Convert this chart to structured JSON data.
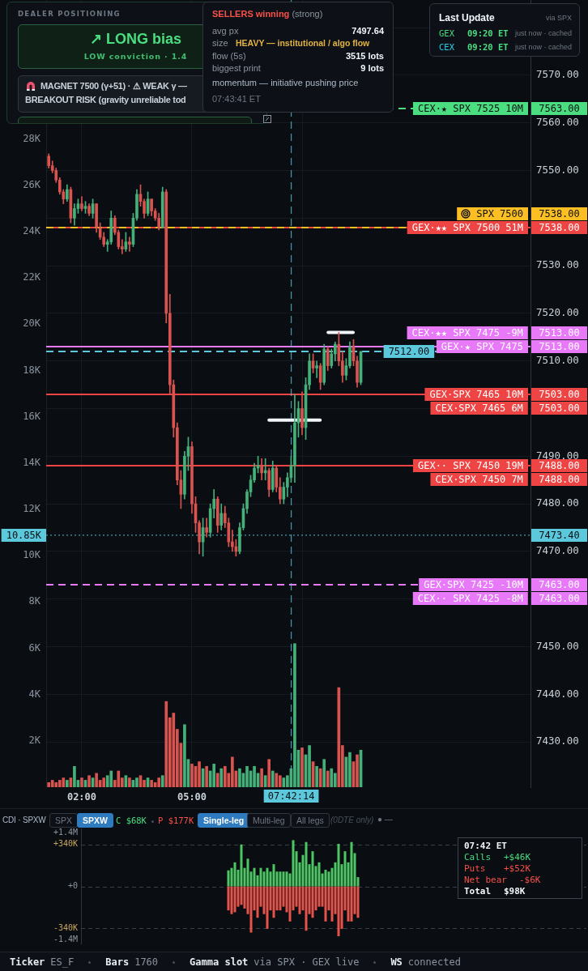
{
  "chart_data": [
    {
      "type": "candlestick",
      "x": [
        1.1,
        1.2,
        1.3,
        1.4,
        1.5,
        1.6,
        1.7,
        1.8,
        1.9,
        2,
        2.1,
        2.2,
        2.3,
        2.4,
        2.5,
        2.6,
        2.7,
        2.8,
        2.9,
        3,
        3.1,
        3.2,
        3.3,
        3.4,
        3.5,
        3.6,
        3.7,
        3.8,
        3.9,
        4,
        4.1,
        4.2,
        4.3,
        4.4,
        4.5,
        4.6,
        4.7,
        4.8,
        4.9,
        5,
        5.1,
        5.2,
        5.3,
        5.4,
        5.5,
        5.6,
        5.7,
        5.8,
        5.9,
        6,
        6.1,
        6.2,
        6.3,
        6.4,
        6.5,
        6.6,
        6.7,
        6.8,
        6.9,
        7,
        7.1,
        7.2,
        7.3,
        7.4,
        7.5,
        7.6,
        7.7,
        7.8,
        7.9,
        8,
        8.1,
        8.2,
        8.3,
        8.4,
        8.5,
        8.6,
        8.7,
        8.8,
        8.9,
        9,
        9.1,
        9.2,
        9.3,
        9.4,
        9.5,
        9.6
      ],
      "series": [
        {
          "ohlc": [
            [
              7553,
              7553.5,
              7550.5,
              7551
            ],
            [
              7551,
              7552,
              7549.5,
              7550
            ],
            [
              7550,
              7550.5,
              7547.5,
              7548
            ],
            [
              7548,
              7548.5,
              7545,
              7545.5
            ],
            [
              7545.5,
              7546,
              7543,
              7544
            ],
            [
              7544,
              7547,
              7543.5,
              7546
            ],
            [
              7546,
              7546.5,
              7539,
              7540
            ],
            [
              7540,
              7543,
              7538.5,
              7542
            ],
            [
              7542,
              7544,
              7541,
              7543
            ],
            [
              7543,
              7544.5,
              7541.5,
              7542
            ],
            [
              7542,
              7543.5,
              7541,
              7542.5
            ],
            [
              7542.5,
              7543,
              7540.5,
              7541
            ],
            [
              7541,
              7544,
              7540,
              7543
            ],
            [
              7543,
              7543,
              7537,
              7538
            ],
            [
              7538,
              7539,
              7535.5,
              7536
            ],
            [
              7536,
              7537,
              7534,
              7534.5
            ],
            [
              7534.5,
              7535.5,
              7533,
              7535
            ],
            [
              7535,
              7541.5,
              7534.5,
              7540
            ],
            [
              7540,
              7540.5,
              7536.5,
              7537
            ],
            [
              7537,
              7537.5,
              7533.5,
              7534
            ],
            [
              7534,
              7535.5,
              7532.5,
              7533.5
            ],
            [
              7533.5,
              7537,
              7533,
              7535
            ],
            [
              7535,
              7536,
              7533,
              7534.5
            ],
            [
              7534.5,
              7541,
              7534,
              7540
            ],
            [
              7540,
              7546,
              7539.5,
              7545
            ],
            [
              7545,
              7547,
              7542.5,
              7543.5
            ],
            [
              7543.5,
              7544,
              7540,
              7541
            ],
            [
              7541,
              7545.5,
              7540.5,
              7544
            ],
            [
              7544,
              7544,
              7540.5,
              7541.5
            ],
            [
              7541.5,
              7542,
              7539.5,
              7540
            ],
            [
              7540,
              7541,
              7537.5,
              7538
            ],
            [
              7538,
              7546.5,
              7538,
              7545.5
            ],
            [
              7545.5,
              7546,
              7518,
              7520
            ],
            [
              7520,
              7524,
              7503,
              7505
            ],
            [
              7505,
              7506,
              7494,
              7496
            ],
            [
              7496,
              7497,
              7484,
              7485
            ],
            [
              7485,
              7487,
              7479,
              7482
            ],
            [
              7482,
              7491,
              7481,
              7490
            ],
            [
              7490,
              7494,
              7487,
              7492
            ],
            [
              7492,
              7493,
              7478,
              7480
            ],
            [
              7480,
              7481.5,
              7474,
              7476
            ],
            [
              7476,
              7476.5,
              7469.5,
              7472
            ],
            [
              7472,
              7477,
              7469,
              7475
            ],
            [
              7475,
              7477,
              7473,
              7474
            ],
            [
              7474,
              7480,
              7473,
              7479
            ],
            [
              7479,
              7483,
              7477,
              7481
            ],
            [
              7481,
              7481.5,
              7474,
              7475.5
            ],
            [
              7475.5,
              7480,
              7474.5,
              7478
            ],
            [
              7478,
              7479.5,
              7475,
              7476
            ],
            [
              7476,
              7477,
              7471,
              7472
            ],
            [
              7472,
              7474.5,
              7470,
              7471
            ],
            [
              7471,
              7472.5,
              7469,
              7470
            ],
            [
              7470,
              7476,
              7469.5,
              7475
            ],
            [
              7475,
              7480,
              7474.5,
              7479
            ],
            [
              7479,
              7483,
              7478,
              7482.5
            ],
            [
              7482.5,
              7486,
              7481.5,
              7485
            ],
            [
              7485,
              7488.5,
              7484.5,
              7487.5
            ],
            [
              7487.5,
              7490,
              7486.5,
              7488
            ],
            [
              7488,
              7489.5,
              7485,
              7486.5
            ],
            [
              7486.5,
              7489.5,
              7485,
              7487
            ],
            [
              7487,
              7487.5,
              7481.5,
              7483
            ],
            [
              7483,
              7489,
              7482.5,
              7487.5
            ],
            [
              7487.5,
              7488,
              7482.5,
              7483.5
            ],
            [
              7483.5,
              7485.5,
              7480,
              7481
            ],
            [
              7481,
              7484.5,
              7480,
              7483.5
            ],
            [
              7483.5,
              7486.5,
              7481.5,
              7485.5
            ],
            [
              7485.5,
              7490,
              7484.5,
              7488
            ],
            [
              7488,
              7503,
              7484.5,
              7497
            ],
            [
              7497,
              7501.5,
              7494,
              7500
            ],
            [
              7500,
              7503.5,
              7494.5,
              7496
            ],
            [
              7496,
              7506.5,
              7493.5,
              7505
            ],
            [
              7505,
              7511.5,
              7504,
              7510
            ],
            [
              7510,
              7511.5,
              7507.5,
              7508.5
            ],
            [
              7508.5,
              7510,
              7506.5,
              7509
            ],
            [
              7509,
              7509.5,
              7504,
              7505.5
            ],
            [
              7505.5,
              7513.5,
              7505,
              7512.5
            ],
            [
              7512.5,
              7513,
              7508,
              7509
            ],
            [
              7509,
              7512.5,
              7508.5,
              7511.5
            ],
            [
              7511.5,
              7514,
              7510,
              7513.5
            ],
            [
              7513.5,
              7516,
              7509,
              7510
            ],
            [
              7510,
              7512,
              7505.5,
              7507
            ],
            [
              7507,
              7510.5,
              7506,
              7509
            ],
            [
              7509,
              7514,
              7508.5,
              7513
            ],
            [
              7513,
              7514.5,
              7509,
              7510
            ],
            [
              7510,
              7511,
              7504.5,
              7505.5
            ],
            [
              7505.5,
              7512,
              7505,
              7512
            ]
          ],
          "colors": [
            "#d9534f",
            "#d9534f",
            "#d9534f",
            "#d9534f",
            "#d9534f",
            "#45b07a",
            "#d9534f",
            "#45b07a",
            "#45b07a",
            "#d9534f",
            "#45b07a",
            "#d9534f",
            "#45b07a",
            "#d9534f",
            "#d9534f",
            "#d9534f",
            "#45b07a",
            "#45b07a",
            "#d9534f",
            "#d9534f",
            "#d9534f",
            "#45b07a",
            "#d9534f",
            "#45b07a",
            "#45b07a",
            "#d9534f",
            "#d9534f",
            "#45b07a",
            "#d9534f",
            "#d9534f",
            "#d9534f",
            "#45b07a",
            "#d9534f",
            "#d9534f",
            "#d9534f",
            "#d9534f",
            "#d9534f",
            "#45b07a",
            "#45b07a",
            "#d9534f",
            "#d9534f",
            "#d9534f",
            "#45b07a",
            "#d9534f",
            "#45b07a",
            "#45b07a",
            "#d9534f",
            "#45b07a",
            "#d9534f",
            "#d9534f",
            "#d9534f",
            "#d9534f",
            "#45b07a",
            "#45b07a",
            "#45b07a",
            "#45b07a",
            "#45b07a",
            "#45b07a",
            "#d9534f",
            "#45b07a",
            "#d9534f",
            "#45b07a",
            "#d9534f",
            "#d9534f",
            "#45b07a",
            "#45b07a",
            "#45b07a",
            "#45b07a",
            "#45b07a",
            "#d9534f",
            "#45b07a",
            "#45b07a",
            "#d9534f",
            "#45b07a",
            "#d9534f",
            "#45b07a",
            "#d9534f",
            "#45b07a",
            "#45b07a",
            "#d9534f",
            "#d9534f",
            "#45b07a",
            "#45b07a",
            "#d9534f",
            "#d9534f",
            "#45b07a"
          ]
        },
        {
          "type": "bar",
          "axis": "y2",
          "values": [
            200,
            300,
            200,
            300,
            400,
            300,
            400,
            900,
            300,
            400,
            300,
            500,
            400,
            600,
            300,
            400,
            500,
            700,
            300,
            700,
            400,
            500,
            400,
            300,
            400,
            500,
            300,
            400,
            300,
            200,
            400,
            500,
            3700,
            3000,
            3200,
            2500,
            1900,
            2700,
            1200,
            1000,
            900,
            1100,
            800,
            900,
            700,
            1000,
            600,
            800,
            900,
            600,
            1300,
            700,
            800,
            600,
            900,
            700,
            900,
            600,
            800,
            500,
            1200,
            700,
            600,
            500,
            400,
            500,
            800,
            6200,
            1600,
            1700,
            1400,
            1800,
            1100,
            900,
            800,
            1200,
            700,
            800,
            600,
            4300,
            1800,
            1300,
            1500,
            1100,
            1400,
            1600
          ],
          "colors": [
            "#d9534f",
            "#d9534f",
            "#d9534f",
            "#d9534f",
            "#d9534f",
            "#45b07a",
            "#d9534f",
            "#45b07a",
            "#45b07a",
            "#d9534f",
            "#45b07a",
            "#d9534f",
            "#45b07a",
            "#d9534f",
            "#d9534f",
            "#d9534f",
            "#45b07a",
            "#45b07a",
            "#d9534f",
            "#d9534f",
            "#d9534f",
            "#45b07a",
            "#d9534f",
            "#45b07a",
            "#45b07a",
            "#d9534f",
            "#d9534f",
            "#45b07a",
            "#d9534f",
            "#d9534f",
            "#d9534f",
            "#45b07a",
            "#d9534f",
            "#d9534f",
            "#d9534f",
            "#d9534f",
            "#d9534f",
            "#45b07a",
            "#45b07a",
            "#d9534f",
            "#d9534f",
            "#d9534f",
            "#45b07a",
            "#d9534f",
            "#45b07a",
            "#45b07a",
            "#d9534f",
            "#45b07a",
            "#d9534f",
            "#d9534f",
            "#d9534f",
            "#d9534f",
            "#45b07a",
            "#45b07a",
            "#45b07a",
            "#45b07a",
            "#45b07a",
            "#45b07a",
            "#d9534f",
            "#45b07a",
            "#d9534f",
            "#45b07a",
            "#d9534f",
            "#d9534f",
            "#45b07a",
            "#45b07a",
            "#45b07a",
            "#45b07a",
            "#45b07a",
            "#d9534f",
            "#45b07a",
            "#45b07a",
            "#d9534f",
            "#45b07a",
            "#d9534f",
            "#45b07a",
            "#d9534f",
            "#45b07a",
            "#45b07a",
            "#d9534f",
            "#d9534f",
            "#45b07a",
            "#45b07a",
            "#d9534f",
            "#d9534f",
            "#45b07a"
          ]
        },
        {
          "type": "line",
          "x": [
            7.1,
            8.49
          ],
          "values": [
            7497.6,
            7497.6
          ],
          "color": "#f0f6fc"
        },
        {
          "type": "line",
          "x": [
            8.71,
            9.39
          ],
          "values": [
            7516,
            7516
          ],
          "color": "#f0f6fc"
        }
      ],
      "xlim": [
        1.03,
        14.22
      ],
      "xticks": [
        {
          "value": 2,
          "label": "02:00"
        },
        {
          "value": 5,
          "label": "05:00"
        },
        {
          "value": 8,
          "label": null
        }
      ],
      "ylim": [
        7420.5,
        7585.8
      ],
      "yticks": [
        {
          "value": 7430,
          "label": "7430.00"
        },
        {
          "value": 7440,
          "label": "7440.00"
        },
        {
          "value": 7450,
          "label": "7450.00"
        },
        {
          "value": 7460,
          "label": null
        },
        {
          "value": 7470,
          "label": "7470.00"
        },
        {
          "value": 7480,
          "label": "7480.00"
        },
        {
          "value": 7490,
          "label": "7490.00"
        },
        {
          "value": 7500,
          "label": null
        },
        {
          "value": 7510,
          "label": "7510.00"
        },
        {
          "value": 7520,
          "label": "7520.00"
        },
        {
          "value": 7530,
          "label": "7530.00"
        },
        {
          "value": 7540,
          "label": null
        },
        {
          "value": 7550,
          "label": "7550.00"
        },
        {
          "value": 7560,
          "label": "7560.00"
        },
        {
          "value": 7570,
          "label": "7570.00"
        },
        {
          "value": 7580,
          "label": null
        }
      ],
      "y2lim": [
        0,
        34000
      ],
      "y2ticks": [
        {
          "value": 2000,
          "label": "2K"
        },
        {
          "value": 4000,
          "label": "4K"
        },
        {
          "value": 6000,
          "label": "6K"
        },
        {
          "value": 8000,
          "label": "8K"
        },
        {
          "value": 10000,
          "label": "10K"
        },
        {
          "value": 12000,
          "label": "12K"
        },
        {
          "value": 14000,
          "label": "14K"
        },
        {
          "value": 16000,
          "label": "16K"
        },
        {
          "value": 18000,
          "label": "18K"
        },
        {
          "value": 20000,
          "label": "20K"
        },
        {
          "value": 22000,
          "label": "22K"
        },
        {
          "value": 24000,
          "label": "24K"
        },
        {
          "value": 26000,
          "label": "26K"
        },
        {
          "value": 28000,
          "label": "28K"
        }
      ],
      "grid": true,
      "ref_lines": [
        {
          "axis": "y",
          "value": 7563,
          "label": "CEX·★ SPX 7525 10M",
          "color": "#4ade80",
          "line_style": "dashed"
        },
        {
          "axis": "y",
          "value": 7538,
          "label": "GEX·★★ SPX 7500 51M",
          "color": "#ef4444",
          "line_style": "solid"
        },
        {
          "axis": "y",
          "value": 7538,
          "label": "SPX 7500",
          "color": "#fbbf24",
          "line_style": "dashed"
        },
        {
          "axis": "y",
          "value": 7513,
          "label": "GEX·★ SPX 7475",
          "color": "#e879f9",
          "line_style": "solid"
        },
        {
          "axis": "y",
          "value": 7512,
          "color": "#5bc8dc",
          "line_style": "dashed"
        },
        {
          "axis": "y",
          "value": 7503,
          "label": "GEX·SPX 7465 10M",
          "color": "#ef4444",
          "line_style": "solid"
        },
        {
          "axis": "y",
          "value": 7488,
          "label": "GEX·· SPX 7450 19M",
          "color": "#ef4444",
          "line_style": "solid"
        },
        {
          "axis": "y",
          "value": 7473.4,
          "color": "#5bc8dc",
          "line_style": "dotted"
        },
        {
          "axis": "y",
          "value": 7463,
          "label": "GEX·SPX 7425 -10M",
          "color": "#e879f9",
          "line_style": "dashed"
        },
        {
          "axis": "x",
          "value": 7.7039,
          "color": "#5bc8dc",
          "line_style": "dashed"
        }
      ],
      "annotations": [
        "DEALER POSITIONING",
        "↗ LONG bias",
        "LOW conviction · 1.4",
        "MAGNET 7500 (γ+51) · ⚠ WEAK γ —",
        "BREAKOUT RISK (gravity unreliable tod",
        "SELLERS winning",
        "(strong)",
        "avg px",
        "7497.64",
        "size",
        "HEAVY — institutional / algo flow",
        "flow (5s)",
        "3515 lots",
        "biggest print",
        "9 lots",
        "momentum — initiative pushing price",
        "07:43:41 ET",
        "Last Update",
        "via SPX",
        "GEX",
        "09:20 ET",
        "just now · cached",
        "CEX",
        "09:20 ET",
        "just now · cached",
        {
          "text": "7563.00",
          "x": 14.22,
          "y": 7563
        },
        {
          "text": "7538.00",
          "x": 14.22,
          "y": 7538
        },
        {
          "text": "7538.00",
          "x": 14.22,
          "y": 7538
        },
        {
          "text": "CEX·★★ SPX 7475 -9M",
          "x": 14.15,
          "y": 7513
        },
        {
          "text": "7513.00",
          "x": 14.22,
          "y": 7513
        },
        {
          "text": "7513.00",
          "x": 14.22,
          "y": 7513
        },
        {
          "text": "7512.00",
          "x": 11.6,
          "y": 7512
        },
        {
          "text": "CEX·SPX 7465 6M",
          "x": 14.15,
          "y": 7503
        },
        {
          "text": "7503.00",
          "x": 14.22,
          "y": 7503
        },
        {
          "text": "7503.00",
          "x": 14.22,
          "y": 7503
        },
        {
          "text": "CEX·SPX 7450 7M",
          "x": 14.15,
          "y": 7488
        },
        {
          "text": "7488.00",
          "x": 14.22,
          "y": 7488
        },
        {
          "text": "7488.00",
          "x": 14.22,
          "y": 7488
        },
        {
          "text": "7473.40",
          "x": 14.22,
          "y": 7473.4
        },
        {
          "text": "10.85K",
          "x": 1.03,
          "y": 7473.4
        },
        {
          "text": "CEX·· SPX 7425 -8M",
          "x": 14.15,
          "y": 7463
        },
        {
          "text": "7463.00",
          "x": 14.22,
          "y": 7463
        },
        {
          "text": "7463.00",
          "x": 14.22,
          "y": 7463
        },
        {
          "text": "07:42:14",
          "x": 7.7039,
          "y": 7420.5
        }
      ]
    },
    {
      "type": "bar",
      "stacked": true,
      "categories": [
        null,
        null,
        null,
        null,
        null,
        null,
        null,
        null,
        null,
        null,
        null,
        null,
        null,
        null,
        null,
        null,
        null,
        null,
        null,
        null,
        null,
        null,
        null,
        null,
        null,
        null,
        null,
        null,
        null,
        null,
        null,
        null,
        null,
        null,
        null,
        null,
        null,
        null,
        null,
        null,
        null,
        null,
        null,
        null,
        null,
        null,
        null,
        null,
        null,
        null,
        null,
        null,
        null,
        null,
        null,
        null,
        null,
        null,
        null,
        null,
        null,
        null,
        null,
        null,
        null,
        null,
        null,
        null,
        null,
        null,
        null,
        null,
        null,
        null,
        null,
        null,
        null,
        null,
        null,
        null,
        null,
        null,
        null,
        null,
        null,
        null,
        null,
        null,
        null,
        null,
        null,
        null,
        null,
        null,
        null,
        null,
        null,
        null,
        null,
        null,
        null,
        null,
        null,
        null,
        null,
        null,
        null,
        null,
        null,
        null,
        null,
        null,
        null,
        null,
        null,
        null,
        null,
        null,
        null,
        null,
        null,
        null,
        null,
        null,
        null,
        null,
        null,
        null,
        null,
        null,
        null,
        null,
        null,
        null,
        null,
        null,
        null,
        null,
        null,
        null,
        null,
        null,
        null,
        null,
        null,
        null,
        null,
        null,
        null,
        null,
        null,
        null,
        null,
        null,
        null,
        null
      ],
      "series": [
        {
          "color": "#4cc764",
          "values": [
            null,
            null,
            null,
            null,
            null,
            null,
            null,
            null,
            null,
            null,
            null,
            null,
            null,
            null,
            null,
            null,
            null,
            null,
            null,
            null,
            null,
            null,
            null,
            null,
            null,
            null,
            null,
            null,
            null,
            null,
            null,
            null,
            null,
            null,
            null,
            null,
            null,
            null,
            null,
            null,
            null,
            null,
            null,
            null,
            null,
            130000,
            150000,
            195000,
            135000,
            340000,
            150000,
            225000,
            120000,
            150000,
            90000,
            150000,
            120000,
            150000,
            120000,
            180000,
            120000,
            120000,
            120000,
            120000,
            105000,
            375000,
            285000,
            195000,
            255000,
            360000,
            180000,
            285000,
            165000,
            195000,
            105000,
            135000,
            120000,
            150000,
            195000,
            345000,
            180000,
            285000,
            195000,
            360000,
            270000,
            75000,
            null,
            null,
            null,
            null,
            null,
            null,
            null,
            null,
            null,
            null,
            null,
            null,
            null,
            null,
            null,
            null,
            null,
            null,
            null,
            null,
            null,
            null,
            null,
            null,
            null,
            null,
            null,
            null,
            null,
            null,
            null,
            null,
            null,
            null,
            null,
            null,
            null,
            null,
            null,
            null,
            null,
            null,
            null,
            null,
            null,
            null,
            null,
            null,
            null,
            null,
            null,
            null,
            null,
            null,
            null,
            null,
            null,
            null,
            null,
            null,
            null,
            null,
            null,
            null,
            null,
            null,
            null,
            null,
            null,
            null
          ]
        },
        {
          "color": "#e5534b",
          "values": [
            null,
            null,
            null,
            null,
            null,
            null,
            null,
            null,
            null,
            null,
            null,
            null,
            null,
            null,
            null,
            null,
            null,
            null,
            null,
            null,
            null,
            null,
            null,
            null,
            null,
            null,
            null,
            null,
            null,
            null,
            null,
            null,
            null,
            null,
            null,
            null,
            null,
            null,
            null,
            null,
            null,
            null,
            null,
            null,
            null,
            -195000,
            -225000,
            -210000,
            -165000,
            -150000,
            -180000,
            -225000,
            -375000,
            -195000,
            -255000,
            -165000,
            -225000,
            -345000,
            -195000,
            -255000,
            -195000,
            -195000,
            -165000,
            -210000,
            -285000,
            -195000,
            -165000,
            -225000,
            -195000,
            -360000,
            -225000,
            -255000,
            -195000,
            -165000,
            -165000,
            -285000,
            -195000,
            -285000,
            -225000,
            -405000,
            -345000,
            -195000,
            -285000,
            -285000,
            -225000,
            -255000,
            null,
            null,
            null,
            null,
            null,
            null,
            null,
            null,
            null,
            null,
            null,
            null,
            null,
            null,
            null,
            null,
            null,
            null,
            null,
            null,
            null,
            null,
            null,
            null,
            null,
            null,
            null,
            null,
            null,
            null,
            null,
            null,
            null,
            null,
            null,
            null,
            null,
            null,
            null,
            null,
            null,
            null,
            null,
            null,
            null,
            null,
            null,
            null,
            null,
            null,
            null,
            null,
            null,
            null,
            null,
            null,
            null,
            null,
            null,
            null,
            null,
            null,
            null,
            null,
            null,
            null,
            null,
            null,
            null,
            null
          ]
        }
      ],
      "ylim": [
        -470000,
        470000
      ],
      "yticks": [
        {
          "value": -340000,
          "label": "-340K"
        },
        {
          "value": 0,
          "label": "+0"
        },
        {
          "value": 340000,
          "label": "+340K"
        }
      ],
      "y2lim": [
        -1520000,
        1520000
      ],
      "y2ticks": [
        {
          "value": -1400000,
          "label": "-1.4M"
        },
        {
          "value": 1400000,
          "label": "+1.4M"
        }
      ],
      "grid": "y",
      "tick_labels": "y",
      "annotations": [
        "CDI · SPXW",
        "SPX",
        "SPXW",
        "C $68K",
        "P $177K",
        "Single-leg",
        "Multi-leg",
        "All legs",
        "(0DTE only)",
        "● —",
        "07:42 ET",
        "Calls",
        "+$46K",
        "Puts",
        "+$52K",
        "Net bear",
        "-$6K",
        "Total",
        "$98K",
        "Ticker",
        "ES_F",
        "Bars",
        "1760",
        "Gamma slot",
        "via SPX · GEX live",
        "WS",
        "connected"
      ]
    }
  ]
}
